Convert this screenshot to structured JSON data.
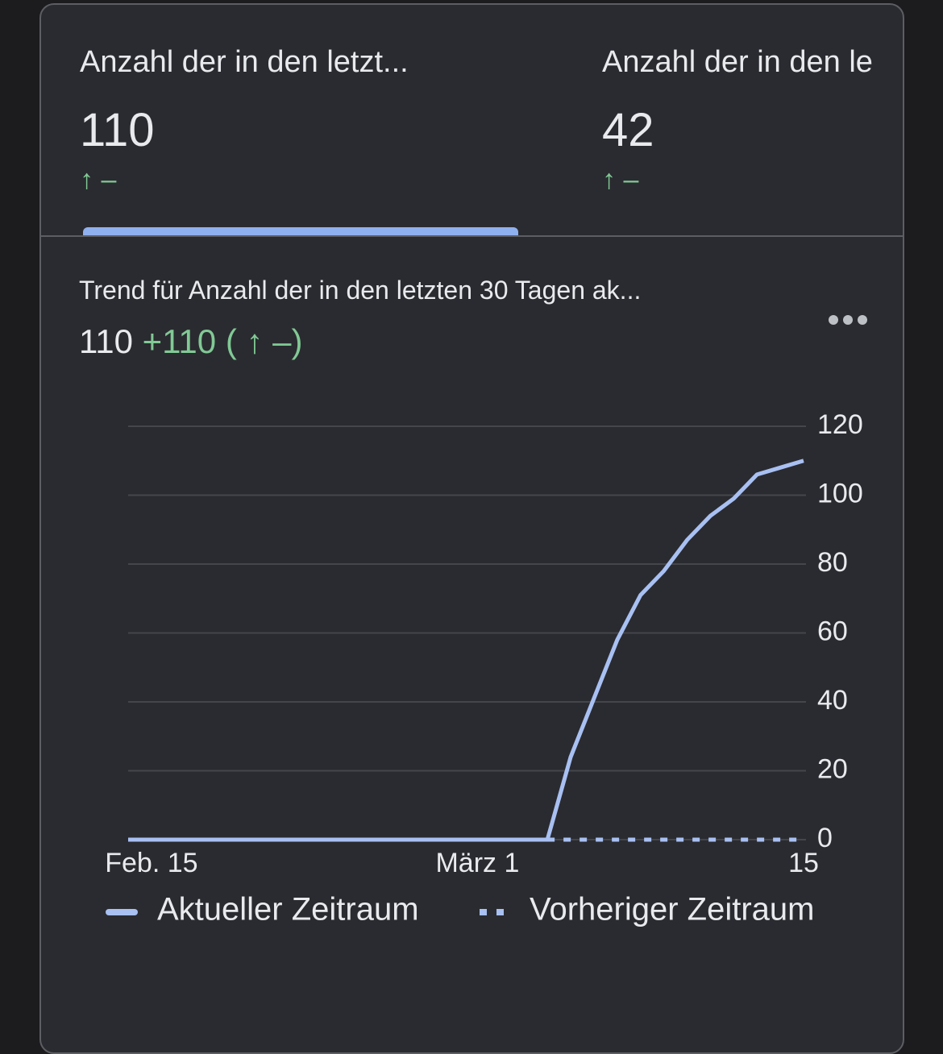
{
  "tabs": [
    {
      "label": "Anzahl der in den letzt...",
      "value": "110",
      "change": "↑ –"
    },
    {
      "label": "Anzahl der in den le",
      "value": "42",
      "change": "↑ –"
    }
  ],
  "trend": {
    "title": "Trend für Anzahl der in den letzten 30 Tagen ak...",
    "value": "110",
    "change": "+110",
    "change_relative": "( ↑ –)"
  },
  "chart_data": {
    "type": "line",
    "categories": [
      null,
      "Feb. 15",
      null,
      null,
      null,
      null,
      null,
      null,
      null,
      null,
      null,
      null,
      null,
      null,
      null,
      "März 1",
      null,
      null,
      null,
      null,
      null,
      null,
      null,
      null,
      null,
      null,
      null,
      null,
      null,
      "15"
    ],
    "series": [
      {
        "name": "Aktueller Zeitraum",
        "color": "#a8c0f2",
        "style": "solid",
        "values": [
          0,
          0,
          0,
          0,
          0,
          0,
          0,
          0,
          0,
          0,
          0,
          0,
          0,
          0,
          0,
          0,
          0,
          0,
          0,
          24,
          41,
          58,
          71,
          78,
          87,
          94,
          99,
          106,
          108,
          110
        ]
      },
      {
        "name": "Vorheriger Zeitraum",
        "color": "#a8c0f2",
        "style": "dotted",
        "values": [
          null,
          null,
          null,
          null,
          null,
          null,
          null,
          null,
          null,
          null,
          null,
          null,
          null,
          null,
          null,
          null,
          null,
          null,
          0,
          0,
          0,
          0,
          0,
          0,
          0,
          0,
          0,
          0,
          0,
          0
        ]
      }
    ],
    "ylim": [
      0,
      120
    ],
    "yticks": [
      0,
      20,
      40,
      60,
      80,
      100,
      120
    ],
    "grid": true,
    "legend": "bottom"
  }
}
